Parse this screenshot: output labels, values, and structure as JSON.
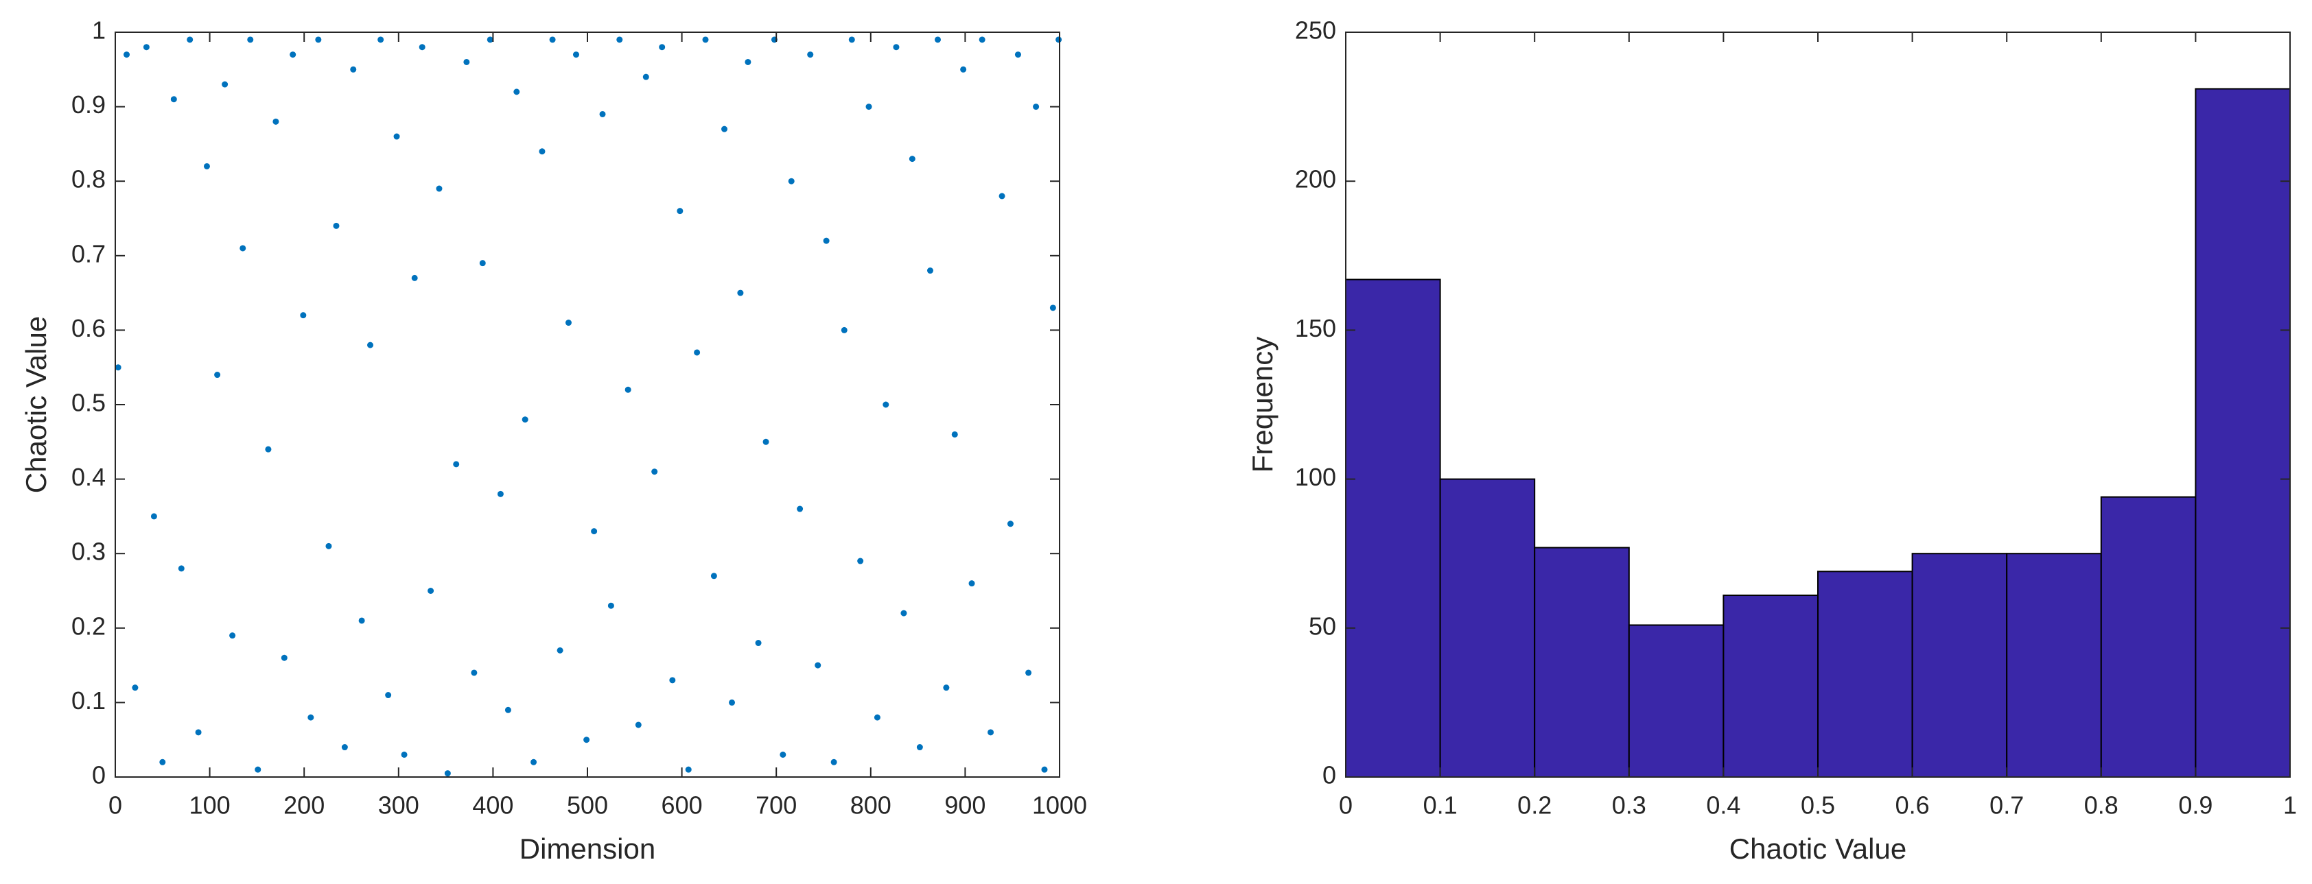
{
  "chart_data": [
    {
      "type": "scatter",
      "x_label": "Dimension",
      "y_label": "Chaotic Value",
      "color": "#0072bd",
      "x": [
        3,
        12,
        21,
        33,
        41,
        50,
        62,
        70,
        79,
        88,
        97,
        108,
        116,
        124,
        135,
        143,
        151,
        162,
        170,
        179,
        188,
        199,
        207,
        215,
        226,
        234,
        243,
        252,
        261,
        270,
        281,
        289,
        298,
        306,
        317,
        325,
        334,
        343,
        352,
        361,
        372,
        380,
        389,
        397,
        408,
        416,
        425,
        434,
        443,
        452,
        463,
        471,
        480,
        488,
        499,
        507,
        516,
        525,
        534,
        543,
        554,
        562,
        571,
        579,
        590,
        598,
        607,
        616,
        625,
        634,
        645,
        653,
        662,
        670,
        681,
        689,
        698,
        707,
        716,
        725,
        736,
        744,
        753,
        761,
        772,
        780,
        789,
        798,
        807,
        816,
        827,
        835,
        844,
        852,
        863,
        871,
        880,
        889,
        898,
        907,
        918,
        927,
        939,
        948,
        956,
        967,
        975,
        984,
        993,
        999
      ],
      "values": [
        0.55,
        0.97,
        0.12,
        0.98,
        0.35,
        0.02,
        0.91,
        0.28,
        0.99,
        0.06,
        0.82,
        0.54,
        0.93,
        0.19,
        0.71,
        0.99,
        0.01,
        0.44,
        0.88,
        0.16,
        0.97,
        0.62,
        0.08,
        0.99,
        0.31,
        0.74,
        0.04,
        0.95,
        0.21,
        0.58,
        0.99,
        0.11,
        0.86,
        0.03,
        0.67,
        0.98,
        0.25,
        0.79,
        0.005,
        0.42,
        0.96,
        0.14,
        0.69,
        0.99,
        0.38,
        0.09,
        0.92,
        0.48,
        0.02,
        0.84,
        0.99,
        0.17,
        0.61,
        0.97,
        0.05,
        0.33,
        0.89,
        0.23,
        0.99,
        0.52,
        0.07,
        0.94,
        0.41,
        0.98,
        0.13,
        0.76,
        0.01,
        0.57,
        0.99,
        0.27,
        0.87,
        0.1,
        0.65,
        0.96,
        0.18,
        0.45,
        0.99,
        0.03,
        0.8,
        0.36,
        0.97,
        0.15,
        0.72,
        0.02,
        0.6,
        0.99,
        0.29,
        0.9,
        0.08,
        0.5,
        0.98,
        0.22,
        0.83,
        0.04,
        0.68,
        0.99,
        0.12,
        0.46,
        0.95,
        0.26,
        0.99,
        0.06,
        0.78,
        0.34,
        0.97,
        0.14,
        0.9,
        0.01,
        0.63,
        0.99
      ],
      "xlim": [
        0,
        1000
      ],
      "xticks": [
        0,
        100,
        200,
        300,
        400,
        500,
        600,
        700,
        800,
        900,
        1000
      ],
      "ylim": [
        0,
        1
      ],
      "yticks": [
        0,
        0.1,
        0.2,
        0.3,
        0.4,
        0.5,
        0.6,
        0.7,
        0.8,
        0.9,
        1
      ]
    },
    {
      "type": "histogram",
      "x_label": "Chaotic Value",
      "y_label": "Frequency",
      "color": "#3a27a8",
      "bins": [
        0,
        0.1,
        0.2,
        0.3,
        0.4,
        0.5,
        0.6,
        0.7,
        0.8,
        0.9,
        1
      ],
      "values": [
        167,
        100,
        77,
        51,
        61,
        69,
        75,
        75,
        94,
        231
      ],
      "xlim": [
        0,
        1
      ],
      "xticks": [
        0,
        0.1,
        0.2,
        0.3,
        0.4,
        0.5,
        0.6,
        0.7,
        0.8,
        0.9,
        1
      ],
      "ylim": [
        0,
        250
      ],
      "yticks": [
        0,
        50,
        100,
        150,
        200,
        250
      ]
    }
  ]
}
